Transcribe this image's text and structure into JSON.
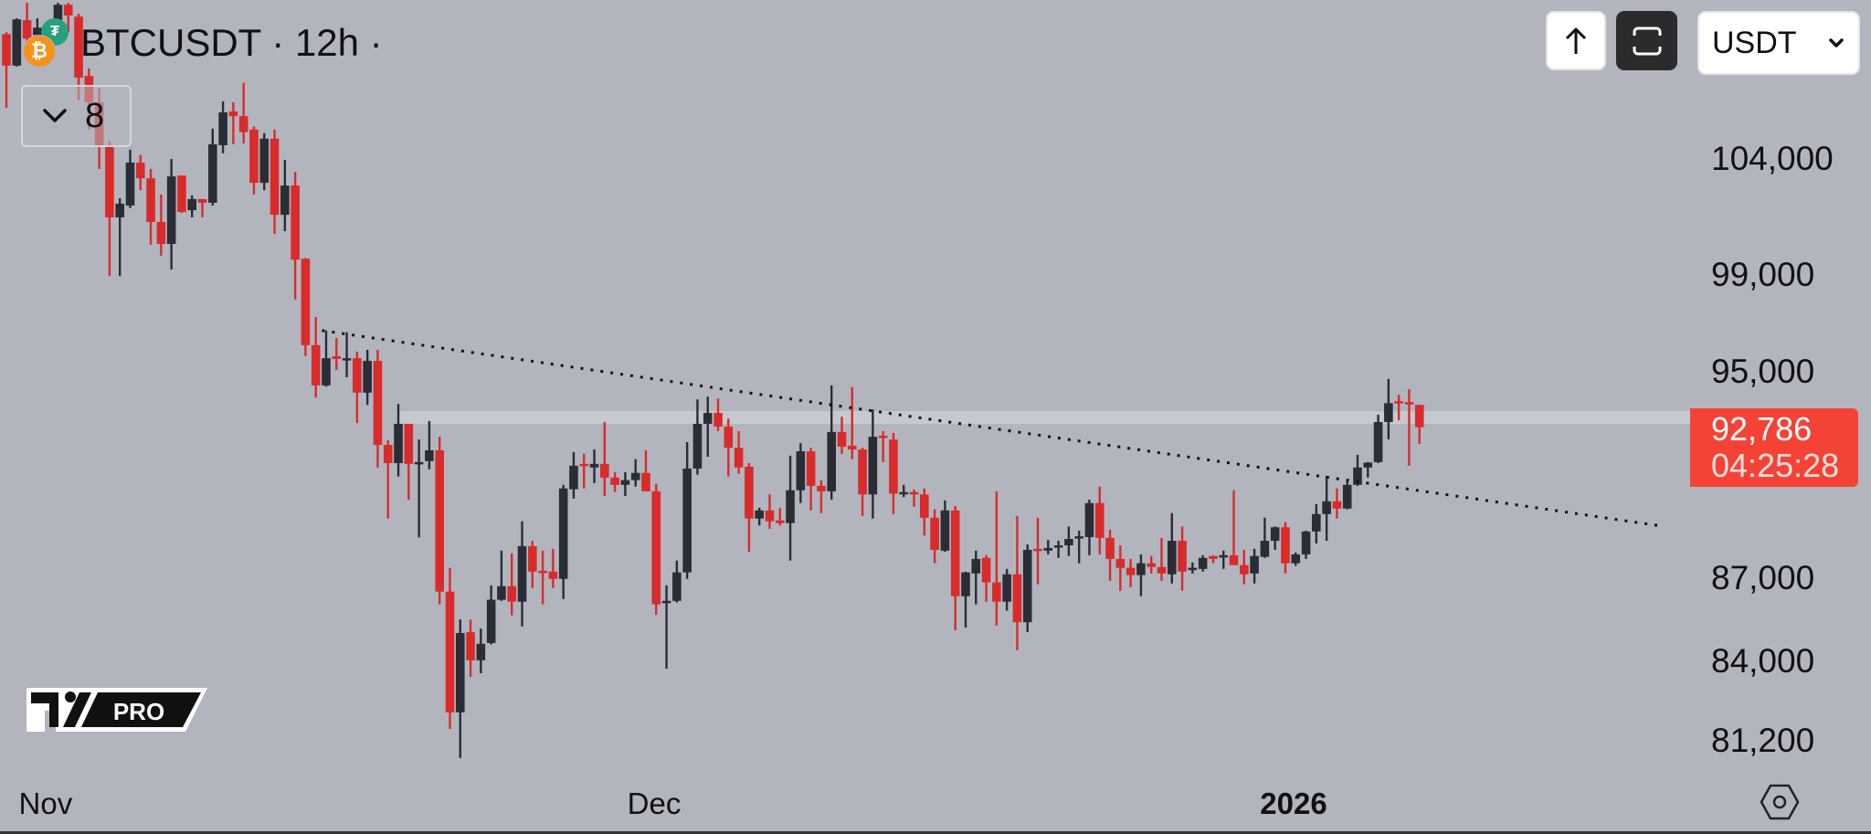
{
  "header": {
    "title": "BTCUSDT · 12h ·",
    "base_icon": "bitcoin-icon",
    "quote_icon": "tether-icon",
    "indicators_toggle_icon": "chevron-down-icon",
    "indicators_count": "8"
  },
  "toolbar": {
    "scroll_up_icon": "arrow-up-icon",
    "fullscreen_icon": "fullscreen-icon",
    "currency_select": {
      "value": "USDT",
      "icon": "chevron-down-icon"
    }
  },
  "logo": {
    "text": "PRO"
  },
  "settings_icon": "hexagon-settings-icon",
  "colors": {
    "background": "#b2b5be",
    "up": "#2a2d35",
    "down": "#d92b2b",
    "price_tag": "#f44336",
    "level_line": "#c6c9d0",
    "trendline": "#111111"
  },
  "chart_data": {
    "type": "candlestick",
    "symbol": "BTCUSDT",
    "interval": "12h",
    "y_scale": "log",
    "ylim": [
      79500,
      111300
    ],
    "grid": false,
    "y_ticks": [
      {
        "value": 104000,
        "label": "104,000"
      },
      {
        "value": 99000,
        "label": "99,000"
      },
      {
        "value": 95000,
        "label": "95,000"
      },
      {
        "value": 87000,
        "label": "87,000"
      },
      {
        "value": 84000,
        "label": "84,000"
      },
      {
        "value": 81200,
        "label": "81,200"
      }
    ],
    "x_ticks": [
      {
        "bar": 3.8,
        "label": "Nov",
        "bold": false
      },
      {
        "bar": 62.8,
        "label": "Dec",
        "bold": false
      },
      {
        "bar": 124.8,
        "label": "2026",
        "bold": true
      }
    ],
    "last_price": {
      "value": 92786,
      "label": "92,786",
      "countdown": "04:25:28"
    },
    "horizontal_level": {
      "price": 93170,
      "from_bar": 38
    },
    "trendline": {
      "style": "dotted",
      "start": {
        "bar": 30.6,
        "price": 96680
      },
      "end": {
        "bar": 160.6,
        "price": 88960
      }
    },
    "ohlc_fields": [
      "open",
      "high",
      "low",
      "close"
    ],
    "candles": [
      [
        109670,
        109760,
        106290,
        108210
      ],
      [
        108210,
        110410,
        108170,
        110360
      ],
      [
        110320,
        111140,
        109330,
        109460
      ],
      [
        109630,
        110410,
        109330,
        109970
      ],
      [
        109760,
        109970,
        109140,
        109330
      ],
      [
        110320,
        111140,
        109970,
        111050
      ],
      [
        111050,
        111140,
        109760,
        110540
      ],
      [
        110490,
        110620,
        106620,
        107660
      ],
      [
        107740,
        108080,
        105310,
        106540
      ],
      [
        106540,
        107170,
        103560,
        104570
      ],
      [
        104570,
        104780,
        98950,
        101450
      ],
      [
        101450,
        102280,
        98950,
        102040
      ],
      [
        101960,
        104410,
        101850,
        103840
      ],
      [
        103840,
        104170,
        102630,
        103150
      ],
      [
        103150,
        103560,
        100270,
        101250
      ],
      [
        101250,
        102440,
        99810,
        100310
      ],
      [
        100310,
        104000,
        99220,
        103230
      ],
      [
        103270,
        103270,
        101640,
        101680
      ],
      [
        101760,
        102400,
        101450,
        102240
      ],
      [
        102240,
        102240,
        101450,
        102080
      ],
      [
        102080,
        105350,
        101960,
        104650
      ],
      [
        104610,
        106580,
        104250,
        106080
      ],
      [
        106120,
        106540,
        104650,
        105910
      ],
      [
        105910,
        107420,
        104690,
        105190
      ],
      [
        105310,
        105440,
        102440,
        102950
      ],
      [
        102950,
        105150,
        102630,
        104900
      ],
      [
        104900,
        105310,
        100740,
        101560
      ],
      [
        101560,
        103960,
        100850,
        102830
      ],
      [
        102830,
        103430,
        97970,
        99640
      ],
      [
        99680,
        99710,
        95630,
        96080
      ],
      [
        96080,
        97240,
        93960,
        94450
      ],
      [
        94450,
        96680,
        94400,
        95550
      ],
      [
        95630,
        96380,
        95080,
        95520
      ],
      [
        95520,
        96610,
        94780,
        95550
      ],
      [
        95550,
        95820,
        92950,
        94160
      ],
      [
        94160,
        95890,
        93670,
        95440
      ],
      [
        95440,
        95890,
        91210,
        92090
      ],
      [
        92090,
        92270,
        89250,
        91380
      ],
      [
        91380,
        93710,
        90860,
        92920
      ],
      [
        92920,
        92920,
        89970,
        91350
      ],
      [
        91350,
        92300,
        88540,
        91420
      ],
      [
        91460,
        93030,
        91140,
        91880
      ],
      [
        91880,
        92410,
        86050,
        86520
      ],
      [
        86520,
        87400,
        81610,
        82190
      ],
      [
        82190,
        85500,
        80610,
        85010
      ],
      [
        85040,
        85500,
        83440,
        84030
      ],
      [
        84030,
        85170,
        83570,
        84620
      ],
      [
        84650,
        86750,
        84600,
        86220
      ],
      [
        86220,
        88040,
        86180,
        86720
      ],
      [
        86720,
        87940,
        85650,
        86150
      ],
      [
        86150,
        89150,
        85250,
        88210
      ],
      [
        88210,
        88410,
        86650,
        87260
      ],
      [
        87290,
        88040,
        86050,
        87230
      ],
      [
        87260,
        88110,
        86650,
        86990
      ],
      [
        86990,
        90540,
        86250,
        90400
      ],
      [
        90370,
        91810,
        90010,
        91280
      ],
      [
        91350,
        91740,
        90400,
        91280
      ],
      [
        91210,
        91910,
        90610,
        91350
      ],
      [
        91350,
        92990,
        90110,
        90820
      ],
      [
        90820,
        91030,
        90260,
        90540
      ],
      [
        90540,
        91030,
        90110,
        90720
      ],
      [
        90720,
        91530,
        90470,
        91000
      ],
      [
        91000,
        91880,
        90290,
        90290
      ],
      [
        90290,
        90580,
        85670,
        86050
      ],
      [
        86120,
        86750,
        83730,
        86180
      ],
      [
        86180,
        87670,
        86120,
        87230
      ],
      [
        87230,
        92200,
        86990,
        91170
      ],
      [
        91170,
        93890,
        90930,
        92920
      ],
      [
        92920,
        94000,
        91630,
        93350
      ],
      [
        93350,
        93920,
        92630,
        92810
      ],
      [
        92810,
        93130,
        90860,
        91980
      ],
      [
        91980,
        92630,
        90970,
        91210
      ],
      [
        91240,
        91380,
        88000,
        89250
      ],
      [
        89250,
        89660,
        88990,
        89560
      ],
      [
        89560,
        90170,
        88860,
        89150
      ],
      [
        89180,
        89660,
        88990,
        89080
      ],
      [
        89080,
        91670,
        87670,
        90330
      ],
      [
        90330,
        92160,
        89840,
        91840
      ],
      [
        91840,
        91980,
        89560,
        90500
      ],
      [
        90500,
        90720,
        89460,
        90290
      ],
      [
        90290,
        94450,
        89970,
        92600
      ],
      [
        92600,
        93200,
        91740,
        92020
      ],
      [
        92060,
        94380,
        91530,
        91910
      ],
      [
        91910,
        91980,
        89350,
        90170
      ],
      [
        90170,
        93490,
        89250,
        92410
      ],
      [
        92450,
        92630,
        91420,
        92380
      ],
      [
        92300,
        92560,
        89420,
        90200
      ],
      [
        90200,
        90540,
        90070,
        90260
      ],
      [
        90260,
        90360,
        89700,
        90200
      ],
      [
        90170,
        90400,
        88610,
        89280
      ],
      [
        89280,
        89600,
        87570,
        88070
      ],
      [
        88040,
        89940,
        88000,
        89560
      ],
      [
        89560,
        89730,
        85110,
        86350
      ],
      [
        86350,
        87260,
        85210,
        87230
      ],
      [
        87190,
        88040,
        86050,
        87730
      ],
      [
        87770,
        87870,
        86150,
        86860
      ],
      [
        86860,
        90290,
        85280,
        86150
      ],
      [
        86150,
        87360,
        85820,
        87160
      ],
      [
        87160,
        89350,
        84390,
        85400
      ],
      [
        85400,
        88270,
        85040,
        88070
      ],
      [
        88110,
        89280,
        86790,
        88040
      ],
      [
        88040,
        88440,
        87900,
        88140
      ],
      [
        88170,
        88410,
        87770,
        88240
      ],
      [
        88240,
        88950,
        87840,
        88480
      ],
      [
        88550,
        88790,
        87570,
        88580
      ],
      [
        88550,
        89970,
        87870,
        89840
      ],
      [
        89840,
        90470,
        87900,
        88520
      ],
      [
        88520,
        88830,
        86920,
        87730
      ],
      [
        87730,
        88240,
        86550,
        87400
      ],
      [
        87400,
        87730,
        86690,
        87130
      ],
      [
        87130,
        87900,
        86350,
        87570
      ],
      [
        87570,
        87840,
        87190,
        87430
      ],
      [
        87430,
        88520,
        86920,
        87190
      ],
      [
        87160,
        89460,
        86820,
        88410
      ],
      [
        88410,
        88950,
        86550,
        87260
      ],
      [
        87360,
        87600,
        87190,
        87400
      ],
      [
        87360,
        87870,
        87260,
        87770
      ],
      [
        87840,
        87870,
        87570,
        87730
      ],
      [
        87840,
        88040,
        87360,
        87870
      ],
      [
        87870,
        90330,
        87500,
        87500
      ],
      [
        87500,
        88070,
        86790,
        87160
      ],
      [
        87190,
        88110,
        86820,
        87840
      ],
      [
        87810,
        89280,
        87770,
        88410
      ],
      [
        88410,
        88950,
        88070,
        88920
      ],
      [
        88920,
        89120,
        87190,
        87570
      ],
      [
        87570,
        87970,
        87470,
        87900
      ],
      [
        87900,
        88790,
        87730,
        88760
      ],
      [
        88760,
        89800,
        88310,
        89420
      ],
      [
        89420,
        90890,
        88410,
        89910
      ],
      [
        89910,
        90400,
        89250,
        89630
      ],
      [
        89630,
        90680,
        89600,
        90540
      ],
      [
        90540,
        91700,
        90500,
        91210
      ],
      [
        91210,
        91420,
        90820,
        91400
      ],
      [
        91420,
        93280,
        91380,
        92990
      ],
      [
        92990,
        94710,
        92310,
        93740
      ],
      [
        93820,
        94070,
        93060,
        93740
      ],
      [
        93780,
        94300,
        91280,
        93710
      ],
      [
        93670,
        93670,
        92130,
        92786
      ]
    ]
  }
}
